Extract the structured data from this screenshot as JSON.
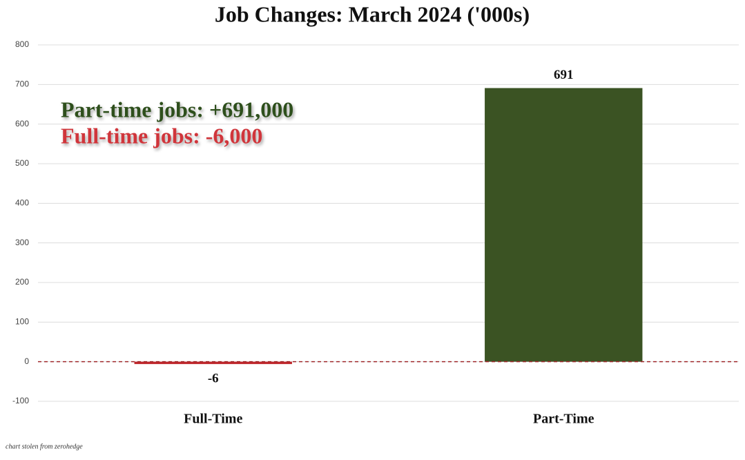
{
  "chart_data": {
    "type": "bar",
    "title": "Job Changes: March 2024 ('000s)",
    "categories": [
      "Full-Time",
      "Part-Time"
    ],
    "values": [
      -6,
      691
    ],
    "colors": [
      "#c0282d",
      "#3b5323"
    ],
    "ylim": [
      -100,
      800
    ],
    "yticks": [
      -100,
      0,
      100,
      200,
      300,
      400,
      500,
      600,
      700,
      800
    ],
    "grid": true,
    "zero_line_color": "#a0282a",
    "annotations": [
      {
        "text": "Part-time jobs: +691,000",
        "color": "#2f4f1f"
      },
      {
        "text": "Full-time jobs: -6,000",
        "color": "#d0363a"
      }
    ],
    "footnote": "chart stolen from zerohedge"
  }
}
